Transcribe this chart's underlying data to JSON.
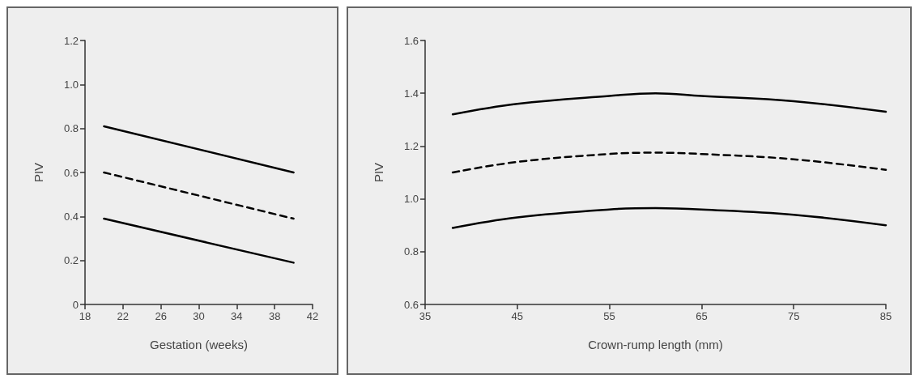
{
  "chart_data": [
    {
      "type": "line",
      "xlabel": "Gestation (weeks)",
      "ylabel": "PIV",
      "xlim": [
        18,
        42
      ],
      "xticks": [
        18,
        22,
        26,
        30,
        34,
        38,
        42
      ],
      "ylim": [
        0,
        1.2
      ],
      "yticks": [
        0,
        0.2,
        0.4,
        0.6,
        0.8,
        {
          "value": 1,
          "label": "1.0"
        },
        1.2
      ],
      "grid": false,
      "marker": "none",
      "series": [
        {
          "color": "#000000",
          "line_style": "solid",
          "x": [
            20,
            40
          ],
          "values": [
            0.81,
            0.6
          ]
        },
        {
          "color": "#000000",
          "line_style": "dashed",
          "x": [
            20,
            40
          ],
          "values": [
            0.6,
            0.39
          ]
        },
        {
          "color": "#000000",
          "line_style": "solid",
          "x": [
            20,
            40
          ],
          "values": [
            0.39,
            0.19
          ]
        }
      ]
    },
    {
      "type": "line",
      "xlabel": "Crown-rump length (mm)",
      "ylabel": "PIV",
      "xlim": [
        35,
        85
      ],
      "xticks": [
        35,
        45,
        55,
        65,
        75,
        85
      ],
      "ylim": [
        0.6,
        1.6
      ],
      "yticks": [
        0.6,
        0.8,
        {
          "value": 1,
          "label": "1.0"
        },
        1.2,
        1.4,
        1.6
      ],
      "grid": false,
      "marker": "none",
      "series": [
        {
          "color": "#000000",
          "line_style": "solid",
          "x": [
            38,
            45,
            55,
            60,
            65,
            75,
            85
          ],
          "values": [
            1.32,
            1.36,
            1.39,
            1.4,
            1.39,
            1.37,
            1.33
          ]
        },
        {
          "color": "#000000",
          "line_style": "dashed",
          "x": [
            38,
            45,
            55,
            60,
            65,
            75,
            85
          ],
          "values": [
            1.1,
            1.14,
            1.17,
            1.175,
            1.17,
            1.15,
            1.11
          ]
        },
        {
          "color": "#000000",
          "line_style": "solid",
          "x": [
            38,
            45,
            55,
            60,
            65,
            75,
            85
          ],
          "values": [
            0.89,
            0.93,
            0.96,
            0.965,
            0.96,
            0.94,
            0.9
          ]
        }
      ]
    }
  ]
}
